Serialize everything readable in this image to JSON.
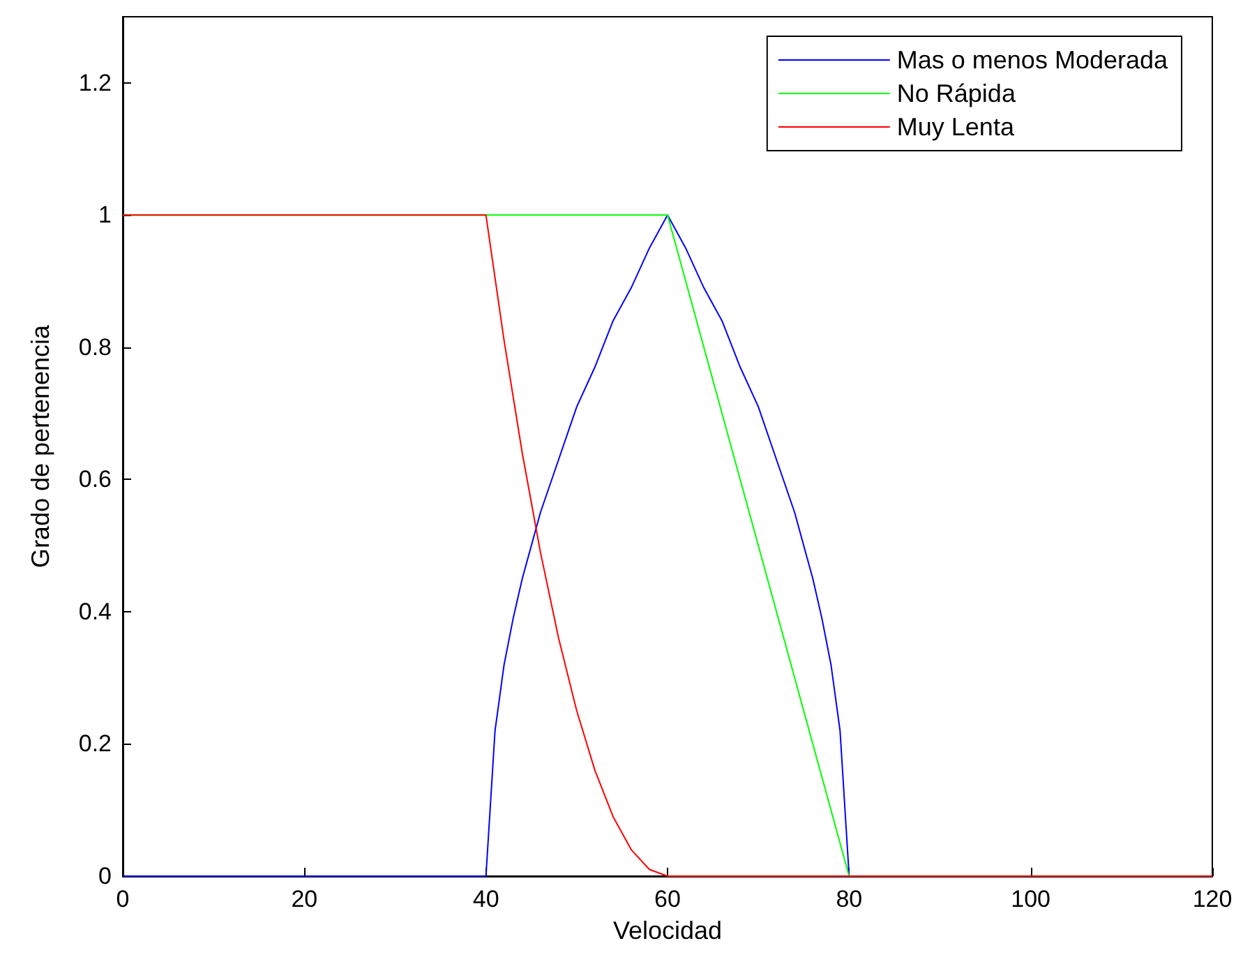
{
  "chart_data": {
    "type": "line",
    "xlabel": "Velocidad",
    "ylabel": "Grado de pertenencia",
    "xlim": [
      0,
      120
    ],
    "ylim": [
      0,
      1.3
    ],
    "xticks": [
      0,
      20,
      40,
      60,
      80,
      100,
      120
    ],
    "yticks": [
      0,
      0.2,
      0.4,
      0.6,
      0.8,
      1,
      1.2
    ],
    "grid": false,
    "legend": "top right",
    "marker": "none",
    "line_style": "solid",
    "series": [
      {
        "name": "Mas o menos Moderada",
        "color": "#0000ff",
        "x": [
          0,
          40,
          41,
          42,
          43,
          44,
          45,
          46,
          48,
          50,
          52,
          54,
          56,
          58,
          60,
          62,
          64,
          66,
          68,
          70,
          72,
          74,
          75,
          76,
          77,
          78,
          79,
          80,
          120
        ],
        "values": [
          0,
          0,
          0.22,
          0.32,
          0.39,
          0.45,
          0.5,
          0.55,
          0.63,
          0.71,
          0.77,
          0.84,
          0.89,
          0.95,
          1,
          0.95,
          0.89,
          0.84,
          0.77,
          0.71,
          0.63,
          0.55,
          0.5,
          0.45,
          0.39,
          0.32,
          0.22,
          0,
          0
        ]
      },
      {
        "name": "No Rápida",
        "color": "#00ff00",
        "x": [
          0,
          60,
          80,
          120
        ],
        "values": [
          1,
          1,
          0,
          0
        ]
      },
      {
        "name": "Muy Lenta",
        "color": "#ff0000",
        "x": [
          0,
          40,
          42,
          44,
          46,
          48,
          50,
          52,
          54,
          56,
          58,
          60,
          120
        ],
        "values": [
          1,
          1,
          0.81,
          0.64,
          0.49,
          0.36,
          0.25,
          0.16,
          0.09,
          0.04,
          0.01,
          0,
          0
        ]
      }
    ]
  }
}
